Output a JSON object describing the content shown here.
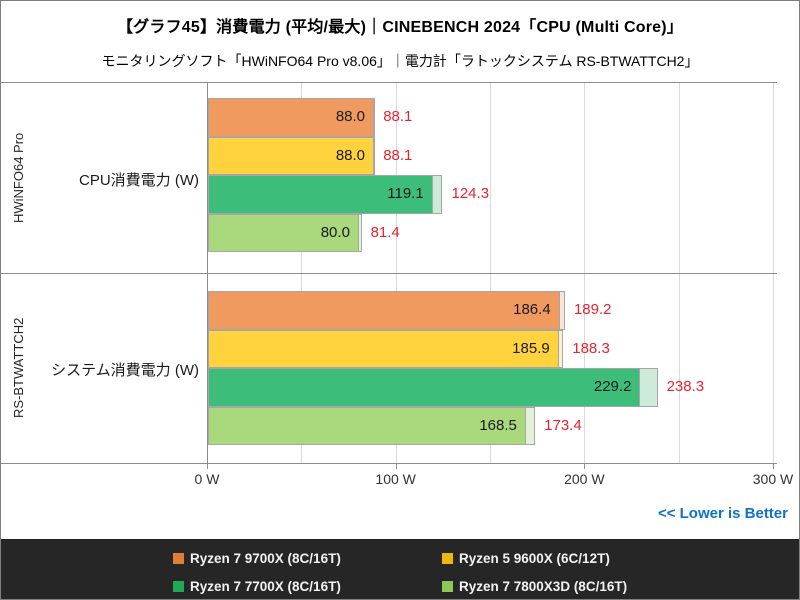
{
  "header": {
    "title": "【グラフ45】消費電力 (平均/最大)｜CINEBENCH 2024「CPU (Multi Core)」",
    "subtitle": "モニタリングソフト「HWiNFO64 Pro v8.06」｜電力計「ラトックシステム RS-BTWATTCH2」"
  },
  "footer": {
    "lower_is_better": "<< Lower is Better"
  },
  "colors": {
    "page_border": "#7f7f7f",
    "frame_line": "#8c8c8c",
    "gridline": "#d9d9d9",
    "bar_border": "#a6a6a6",
    "avg_value_text": "#1a1a1a",
    "max_value_text": "#e8232e",
    "lower_is_better_text": "#0f72c5",
    "legend_background": "#262626",
    "legend_text": "#f2f2f2"
  },
  "chart_data": {
    "type": "bar",
    "orientation": "horizontal",
    "unit": "W",
    "xlim": [
      0,
      300
    ],
    "grid_step": 50,
    "x_tick_values": [
      0,
      100,
      200,
      300
    ],
    "x_tick_labels": [
      "0 W",
      "100 W",
      "200 W",
      "300 W"
    ],
    "legend_position": "bottom",
    "value_kinds": [
      "avg",
      "max"
    ],
    "series": [
      {
        "name": "Ryzen 7 9700X (8C/16T)",
        "bar_color": "#f09a60",
        "max_ext_color": "#f5e6d9",
        "legend_color": "#e07e33"
      },
      {
        "name": "Ryzen 5 9600X (6C/12T)",
        "bar_color": "#ffd23e",
        "max_ext_color": "#fbf0d0",
        "legend_color": "#efb510"
      },
      {
        "name": "Ryzen 7 7700X (8C/16T)",
        "bar_color": "#3cbe7a",
        "max_ext_color": "#cdebd8",
        "legend_color": "#22a757"
      },
      {
        "name": "Ryzen 7 7800X3D (8C/16T)",
        "bar_color": "#aad87d",
        "max_ext_color": "#e5f1d6",
        "legend_color": "#8fc858"
      }
    ],
    "groups": [
      {
        "instrument": "HWiNFO64 Pro",
        "category": "CPU消費電力 (W)",
        "values": [
          {
            "avg": 88.0,
            "max": 88.1
          },
          {
            "avg": 88.0,
            "max": 88.1
          },
          {
            "avg": 119.1,
            "max": 124.3
          },
          {
            "avg": 80.0,
            "max": 81.4
          }
        ]
      },
      {
        "instrument": "RS-BTWATTCH2",
        "category": "システム消費電力 (W)",
        "values": [
          {
            "avg": 186.4,
            "max": 189.2
          },
          {
            "avg": 185.9,
            "max": 188.3
          },
          {
            "avg": 229.2,
            "max": 238.3
          },
          {
            "avg": 168.5,
            "max": 173.4
          }
        ]
      }
    ]
  }
}
